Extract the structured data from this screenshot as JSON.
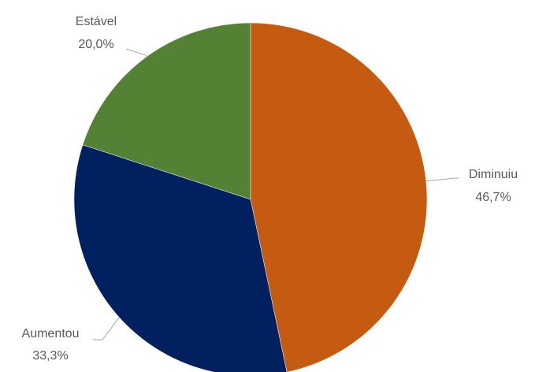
{
  "chart_data": {
    "type": "pie",
    "slices": [
      {
        "name": "Diminuiu",
        "value": 46.7,
        "value_label": "46,7%",
        "color": "#c55a11"
      },
      {
        "name": "Aumentou",
        "value": 33.3,
        "value_label": "33,3%",
        "color": "#002060"
      },
      {
        "name": "Estável",
        "value": 20.0,
        "value_label": "20,0%",
        "color": "#548235"
      }
    ],
    "start_angle": "12 o'clock",
    "direction": "clockwise",
    "legend": "none",
    "data_labels": "category name and percentage, outside with leader lines"
  }
}
